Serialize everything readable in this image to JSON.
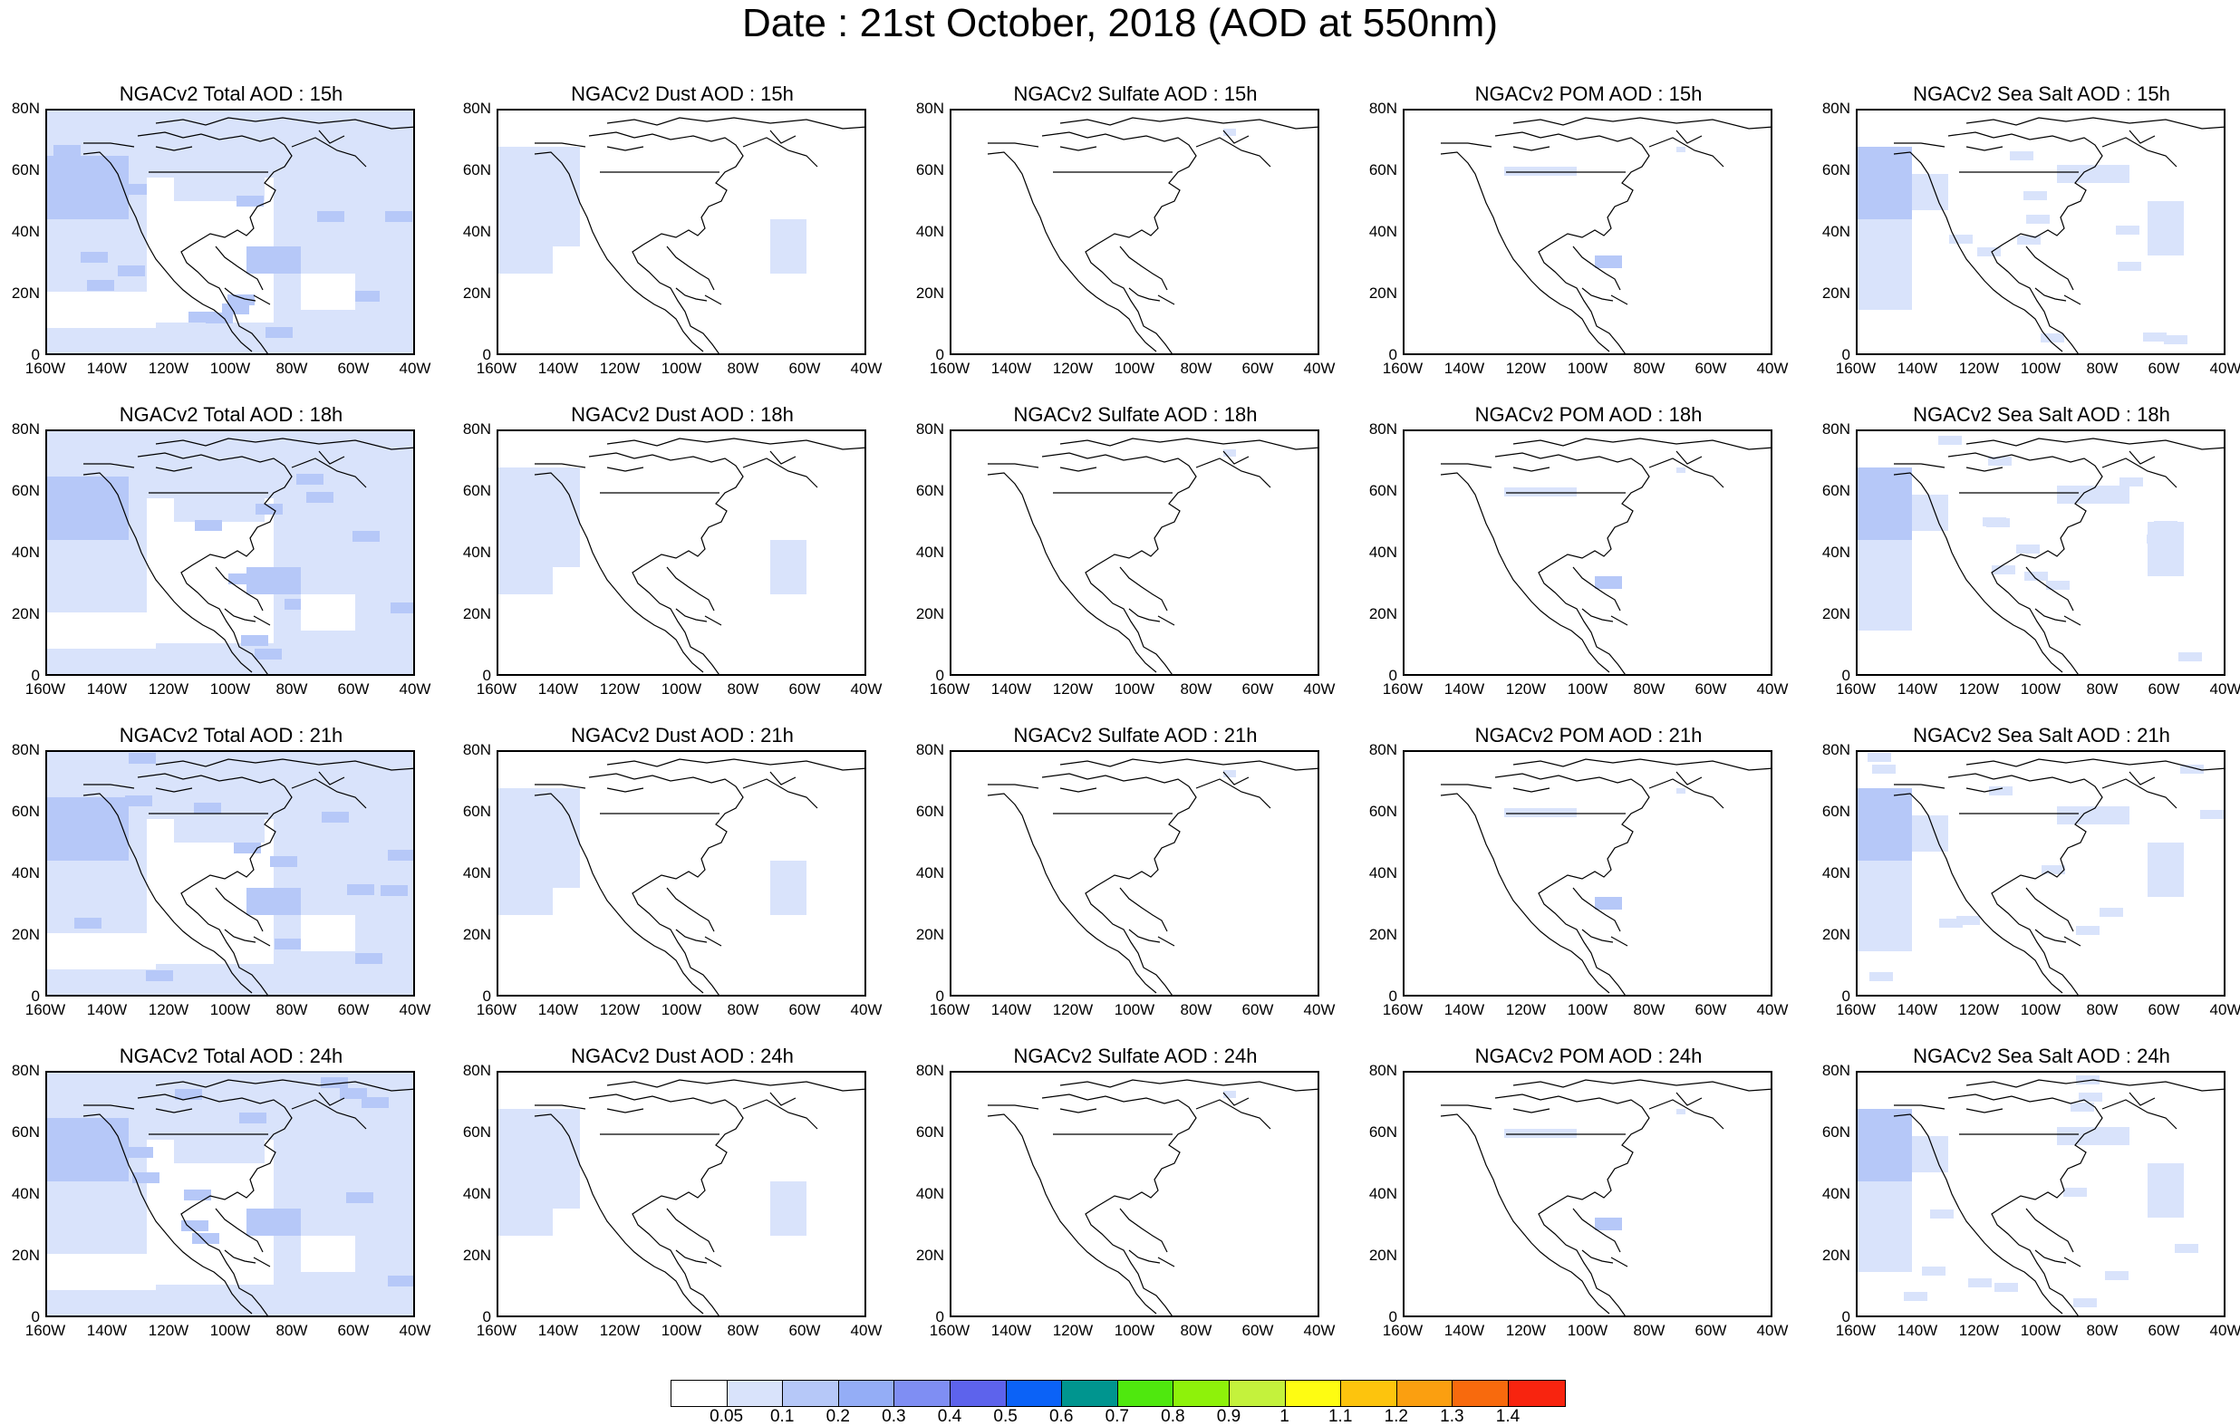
{
  "title": "Date : 21st October, 2018 (AOD at 550nm)",
  "x_ticks": [
    "160W",
    "140W",
    "120W",
    "100W",
    "80W",
    "60W",
    "40W"
  ],
  "y_ticks": [
    "80N",
    "60N",
    "40N",
    "20N",
    "0"
  ],
  "panels": [
    [
      "NGACv2 Total AOD : 15h",
      "NGACv2 Dust AOD : 15h",
      "NGACv2 Sulfate AOD : 15h",
      "NGACv2 POM AOD : 15h",
      "NGACv2 Sea Salt AOD : 15h"
    ],
    [
      "NGACv2 Total AOD : 18h",
      "NGACv2 Dust AOD : 18h",
      "NGACv2 Sulfate AOD : 18h",
      "NGACv2 POM AOD : 18h",
      "NGACv2 Sea Salt AOD : 18h"
    ],
    [
      "NGACv2 Total AOD : 21h",
      "NGACv2 Dust AOD : 21h",
      "NGACv2 Sulfate AOD : 21h",
      "NGACv2 POM AOD : 21h",
      "NGACv2 Sea Salt AOD : 21h"
    ],
    [
      "NGACv2 Total AOD : 24h",
      "NGACv2 Dust AOD : 24h",
      "NGACv2 Sulfate AOD : 24h",
      "NGACv2 POM AOD : 24h",
      "NGACv2 Sea Salt  AOD : 24h"
    ]
  ],
  "colorbar": {
    "labels": [
      "0.05",
      "0.1",
      "0.2",
      "0.3",
      "0.4",
      "0.5",
      "0.6",
      "0.7",
      "0.8",
      "0.9",
      "1",
      "1.1",
      "1.2",
      "1.3",
      "1.4"
    ],
    "colors": [
      "#ffffff",
      "#d9e3fb",
      "#b6c8f8",
      "#94adf6",
      "#7f8ef3",
      "#5d63ec",
      "#0b62f7",
      "#00958f",
      "#4fe80e",
      "#8ef20a",
      "#c4f23c",
      "#fefc12",
      "#fdc40d",
      "#fb9f10",
      "#f86a0d",
      "#f8240f"
    ]
  },
  "colors": {
    "aod_low": "#d9e3fb",
    "aod_mid": "#b6c8f8",
    "aod_high": "#94adf6",
    "coastline": "#000000"
  }
}
